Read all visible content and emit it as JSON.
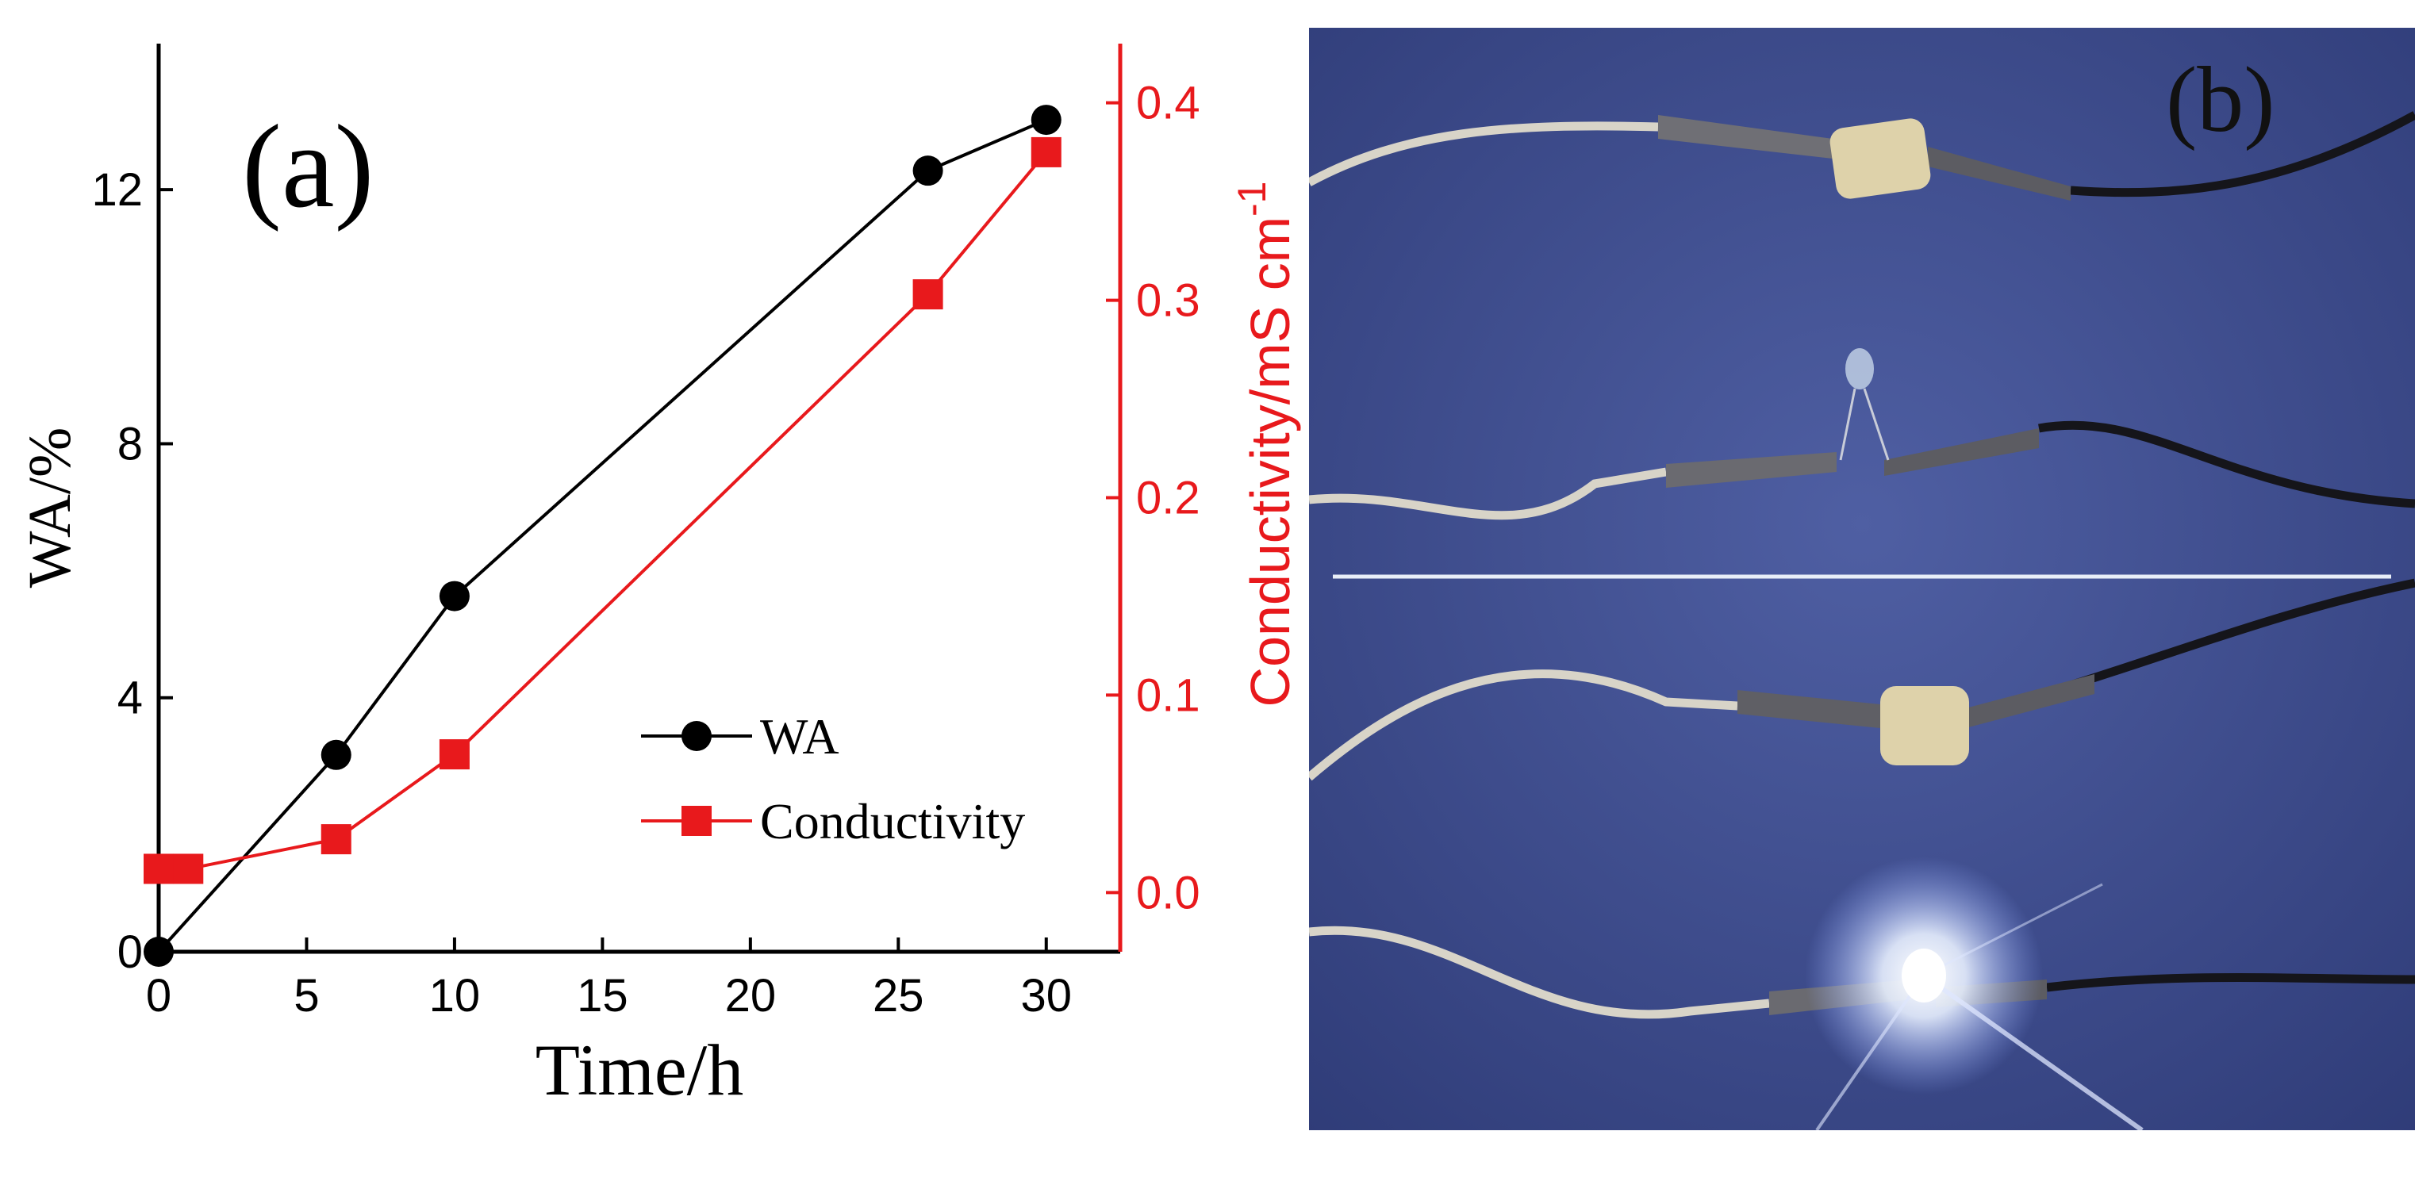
{
  "chart_data": {
    "type": "line",
    "panel_label": "(a)",
    "xlabel": "Time/h",
    "ylabel": "WA/%",
    "y2label": "Conductivity/mS cm",
    "y2label_superscript": "-1",
    "xlim": [
      0,
      32.5
    ],
    "ylim": [
      0,
      14.3
    ],
    "y2lim": [
      -0.03,
      0.43
    ],
    "x_ticks": [
      "0",
      "5",
      "10",
      "15",
      "20",
      "25",
      "30"
    ],
    "y_ticks": [
      "0",
      "4",
      "8",
      "12"
    ],
    "y2_ticks": [
      "0.0",
      "0.1",
      "0.2",
      "0.3",
      "0.4"
    ],
    "series": [
      {
        "name": "WA",
        "axis": "left",
        "color": "#000000",
        "marker": "circle",
        "x": [
          0,
          6,
          10,
          26,
          30
        ],
        "y": [
          0,
          3.1,
          5.6,
          12.3,
          13.1
        ]
      },
      {
        "name": "Conductivity",
        "axis": "right",
        "color": "#e8191c",
        "marker": "square",
        "x": [
          0,
          1,
          6,
          10,
          26,
          30
        ],
        "y": [
          0.012,
          0.012,
          0.027,
          0.07,
          0.303,
          0.375
        ]
      }
    ],
    "legend": {
      "position": "bottom-right",
      "items": [
        "WA",
        "Conductivity"
      ]
    }
  },
  "photo": {
    "panel_label": "(b)",
    "background_color": "#3b4a8a",
    "divider_color": "#e8eef8",
    "led_unlit_color": "#b8c8e0",
    "led_lit_color": "#ffffff"
  }
}
